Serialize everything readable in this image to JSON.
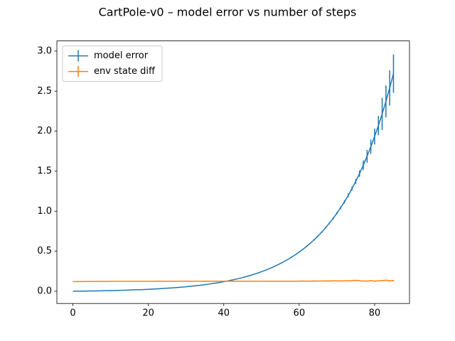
{
  "chart_data": {
    "type": "errorbar-line",
    "title": "CartPole-v0 – model error vs number of steps",
    "x": [
      0,
      1,
      2,
      3,
      4,
      5,
      6,
      7,
      8,
      9,
      10,
      11,
      12,
      13,
      14,
      15,
      16,
      17,
      18,
      19,
      20,
      21,
      22,
      23,
      24,
      25,
      26,
      27,
      28,
      29,
      30,
      31,
      32,
      33,
      34,
      35,
      36,
      37,
      38,
      39,
      40,
      41,
      42,
      43,
      44,
      45,
      46,
      47,
      48,
      49,
      50,
      51,
      52,
      53,
      54,
      55,
      56,
      57,
      58,
      59,
      60,
      61,
      62,
      63,
      64,
      65,
      66,
      67,
      68,
      69,
      70,
      71,
      72,
      73,
      74,
      75,
      76,
      77,
      78,
      79,
      80,
      81,
      82,
      83,
      84,
      85
    ],
    "series": [
      {
        "name": "model error",
        "color": "#1f77b4",
        "values": [
          0.0,
          0.001,
          0.001,
          0.002,
          0.003,
          0.003,
          0.004,
          0.005,
          0.006,
          0.007,
          0.008,
          0.009,
          0.011,
          0.012,
          0.013,
          0.015,
          0.017,
          0.018,
          0.02,
          0.022,
          0.024,
          0.027,
          0.029,
          0.032,
          0.035,
          0.038,
          0.041,
          0.044,
          0.048,
          0.052,
          0.056,
          0.061,
          0.066,
          0.071,
          0.076,
          0.082,
          0.089,
          0.096,
          0.103,
          0.111,
          0.119,
          0.128,
          0.138,
          0.148,
          0.159,
          0.171,
          0.184,
          0.197,
          0.212,
          0.227,
          0.244,
          0.261,
          0.28,
          0.301,
          0.323,
          0.346,
          0.371,
          0.398,
          0.426,
          0.457,
          0.489,
          0.524,
          0.562,
          0.602,
          0.645,
          0.691,
          0.74,
          0.793,
          0.85,
          0.91,
          0.975,
          1.044,
          1.118,
          1.197,
          1.282,
          1.373,
          1.47,
          1.574,
          1.686,
          1.805,
          1.933,
          2.069,
          2.215,
          2.372,
          2.54,
          2.719
        ],
        "errors": [
          0,
          0,
          0,
          0,
          0,
          0,
          0,
          0,
          0,
          0,
          0,
          0,
          0,
          0,
          0,
          0,
          0,
          0,
          0,
          0,
          0,
          0,
          0,
          0,
          0,
          0,
          0,
          0,
          0,
          0,
          0,
          0,
          0,
          0,
          0,
          0,
          0,
          0,
          0,
          0,
          0,
          0,
          0,
          0,
          0,
          0,
          0,
          0,
          0,
          0,
          0.002,
          0.002,
          0.002,
          0.003,
          0.003,
          0.003,
          0.004,
          0.004,
          0.005,
          0.005,
          0.006,
          0.006,
          0.007,
          0.008,
          0.008,
          0.009,
          0.01,
          0.011,
          0.012,
          0.014,
          0.015,
          0.017,
          0.02,
          0.022,
          0.025,
          0.03,
          0.04,
          0.06,
          0.08,
          0.09,
          0.1,
          0.12,
          0.2,
          0.2,
          0.22,
          0.24
        ]
      },
      {
        "name": "env state diff",
        "color": "#ff7f0e",
        "values": [
          0.12,
          0.121,
          0.121,
          0.122,
          0.122,
          0.122,
          0.123,
          0.123,
          0.123,
          0.123,
          0.124,
          0.124,
          0.124,
          0.124,
          0.124,
          0.124,
          0.124,
          0.124,
          0.124,
          0.124,
          0.124,
          0.124,
          0.125,
          0.125,
          0.125,
          0.125,
          0.125,
          0.125,
          0.125,
          0.125,
          0.125,
          0.125,
          0.125,
          0.125,
          0.125,
          0.125,
          0.125,
          0.125,
          0.125,
          0.125,
          0.125,
          0.125,
          0.125,
          0.125,
          0.125,
          0.125,
          0.125,
          0.125,
          0.125,
          0.125,
          0.125,
          0.125,
          0.125,
          0.125,
          0.125,
          0.125,
          0.125,
          0.125,
          0.125,
          0.125,
          0.126,
          0.127,
          0.126,
          0.127,
          0.128,
          0.127,
          0.128,
          0.129,
          0.128,
          0.129,
          0.13,
          0.128,
          0.131,
          0.129,
          0.133,
          0.136,
          0.131,
          0.128,
          0.127,
          0.132,
          0.126,
          0.13,
          0.134,
          0.138,
          0.129,
          0.133
        ],
        "errors": [
          0.002,
          0.002,
          0.002,
          0.002,
          0.002,
          0.002,
          0.002,
          0.002,
          0.002,
          0.002,
          0.002,
          0.002,
          0.002,
          0.002,
          0.002,
          0.002,
          0.002,
          0.002,
          0.002,
          0.002,
          0.002,
          0.002,
          0.002,
          0.002,
          0.002,
          0.002,
          0.002,
          0.002,
          0.002,
          0.002,
          0.002,
          0.002,
          0.002,
          0.002,
          0.002,
          0.002,
          0.002,
          0.002,
          0.002,
          0.002,
          0.002,
          0.002,
          0.002,
          0.002,
          0.002,
          0.002,
          0.002,
          0.002,
          0.002,
          0.002,
          0.002,
          0.002,
          0.002,
          0.002,
          0.002,
          0.002,
          0.002,
          0.002,
          0.002,
          0.002,
          0.003,
          0.003,
          0.003,
          0.003,
          0.003,
          0.003,
          0.003,
          0.003,
          0.003,
          0.003,
          0.004,
          0.004,
          0.004,
          0.004,
          0.005,
          0.005,
          0.005,
          0.005,
          0.006,
          0.006,
          0.006,
          0.007,
          0.007,
          0.008,
          0.008,
          0.009
        ]
      }
    ],
    "xlim": [
      -4.25,
      89.25
    ],
    "ylim": [
      -0.153,
      3.127
    ],
    "xticks": [
      0,
      20,
      40,
      60,
      80
    ],
    "yticks": [
      {
        "value": 0,
        "label": "0.0"
      },
      {
        "value": 0.5,
        "label": "0.5"
      },
      {
        "value": 1,
        "label": "1.0"
      },
      {
        "value": 1.5,
        "label": "1.5"
      },
      {
        "value": 2,
        "label": "2.0"
      },
      {
        "value": 2.5,
        "label": "2.5"
      },
      {
        "value": 3,
        "label": "3.0"
      }
    ],
    "legend": "upper left",
    "grid": false
  }
}
